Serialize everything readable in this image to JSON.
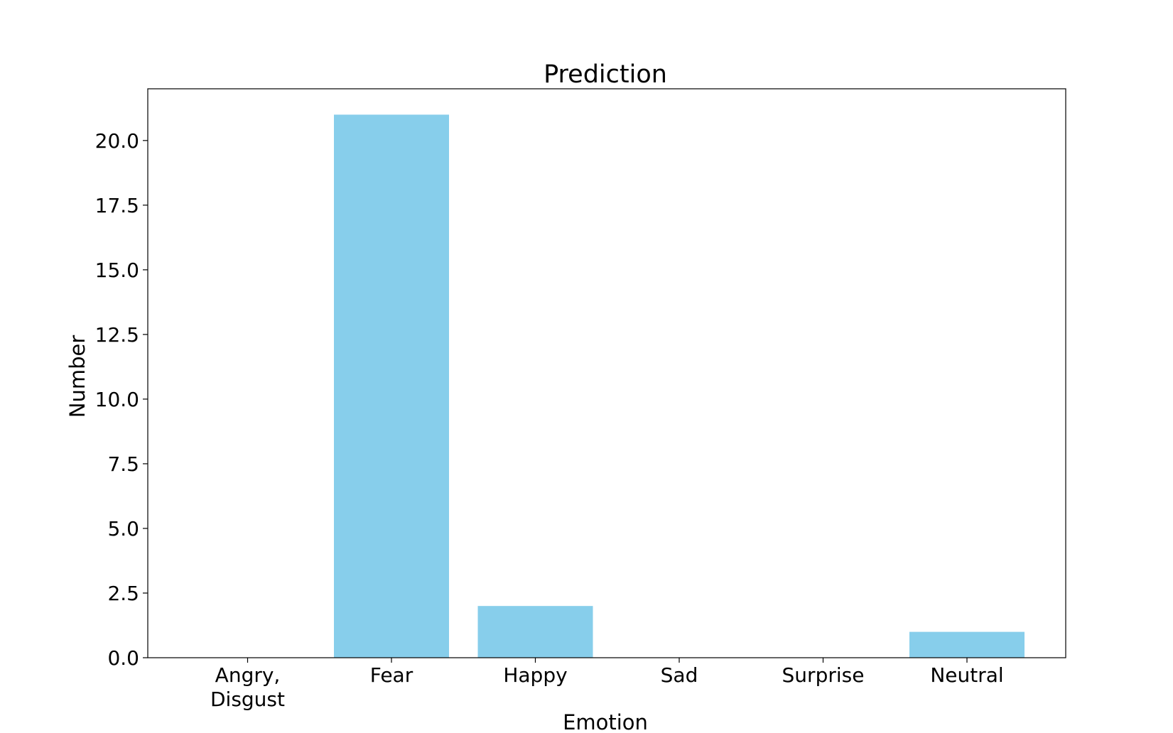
{
  "chart_data": {
    "type": "bar",
    "title": "Prediction",
    "xlabel": "Emotion",
    "ylabel": "Number",
    "categories": [
      [
        "Angry,",
        "Disgust"
      ],
      [
        "Fear"
      ],
      [
        "Happy"
      ],
      [
        "Sad"
      ],
      [
        "Surprise"
      ],
      [
        "Neutral"
      ]
    ],
    "values": [
      0,
      21,
      2,
      0,
      0,
      1
    ],
    "ylim": [
      0,
      22
    ],
    "yticks": [
      "0.0",
      "2.5",
      "5.0",
      "7.5",
      "10.0",
      "12.5",
      "15.0",
      "17.5",
      "20.0"
    ],
    "ytick_values": [
      0,
      2.5,
      5,
      7.5,
      10,
      12.5,
      15,
      17.5,
      20
    ],
    "bar_color": "#87ceeb",
    "grid": false,
    "legend": "none"
  }
}
